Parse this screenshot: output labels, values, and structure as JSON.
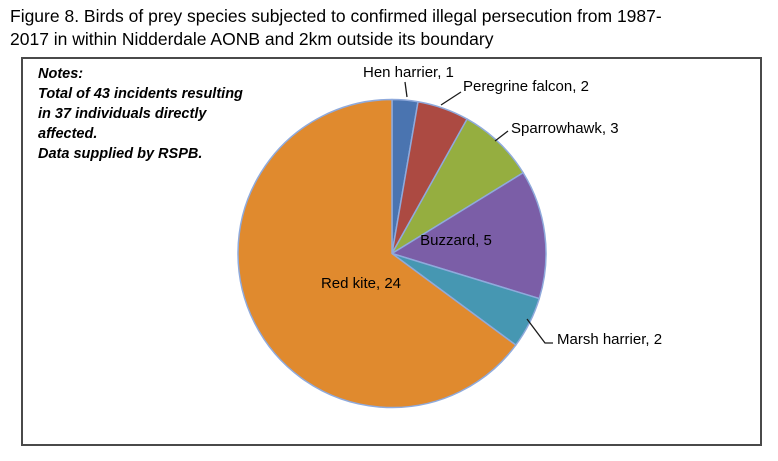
{
  "figure": {
    "title_lines": [
      "Figure 8. Birds of prey species subjected to confirmed illegal persecution from 1987-",
      "2017 in within Nidderdale AONB and 2km outside its boundary"
    ]
  },
  "notes": {
    "lines": [
      "Notes:",
      "Total of 43 incidents resulting",
      "in 37 individuals directly",
      "affected.",
      "Data supplied by RSPB."
    ]
  },
  "chart_data": {
    "type": "pie",
    "title": "",
    "legend": "none",
    "start_angle_deg": 0,
    "direction": "clockwise",
    "total_individuals": 37,
    "categories": [
      "Hen harrier",
      "Peregrine falcon",
      "Sparrowhawk",
      "Buzzard",
      "Marsh harrier",
      "Red kite"
    ],
    "values": [
      1,
      2,
      3,
      5,
      2,
      24
    ],
    "slices": [
      {
        "label": "Hen harrier",
        "value": 1,
        "color": "#4a74b0",
        "data_label": "Hen harrier, 1"
      },
      {
        "label": "Peregrine falcon",
        "value": 2,
        "color": "#ac4a42",
        "data_label": "Peregrine falcon, 2"
      },
      {
        "label": "Sparrowhawk",
        "value": 3,
        "color": "#95ae40",
        "data_label": "Sparrowhawk, 3"
      },
      {
        "label": "Buzzard",
        "value": 5,
        "color": "#7b5ea7",
        "data_label": "Buzzard, 5"
      },
      {
        "label": "Marsh harrier",
        "value": 2,
        "color": "#4697b2",
        "data_label": "Marsh harrier, 2"
      },
      {
        "label": "Red kite",
        "value": 24,
        "color": "#e08a2e",
        "data_label": "Red kite, 24"
      }
    ],
    "slice_border_color": "#8faadc",
    "leader_line_color": "#1a1a1a"
  },
  "colors": {
    "frame_border": "#4a4a4a",
    "background": "#ffffff",
    "text": "#000000"
  }
}
